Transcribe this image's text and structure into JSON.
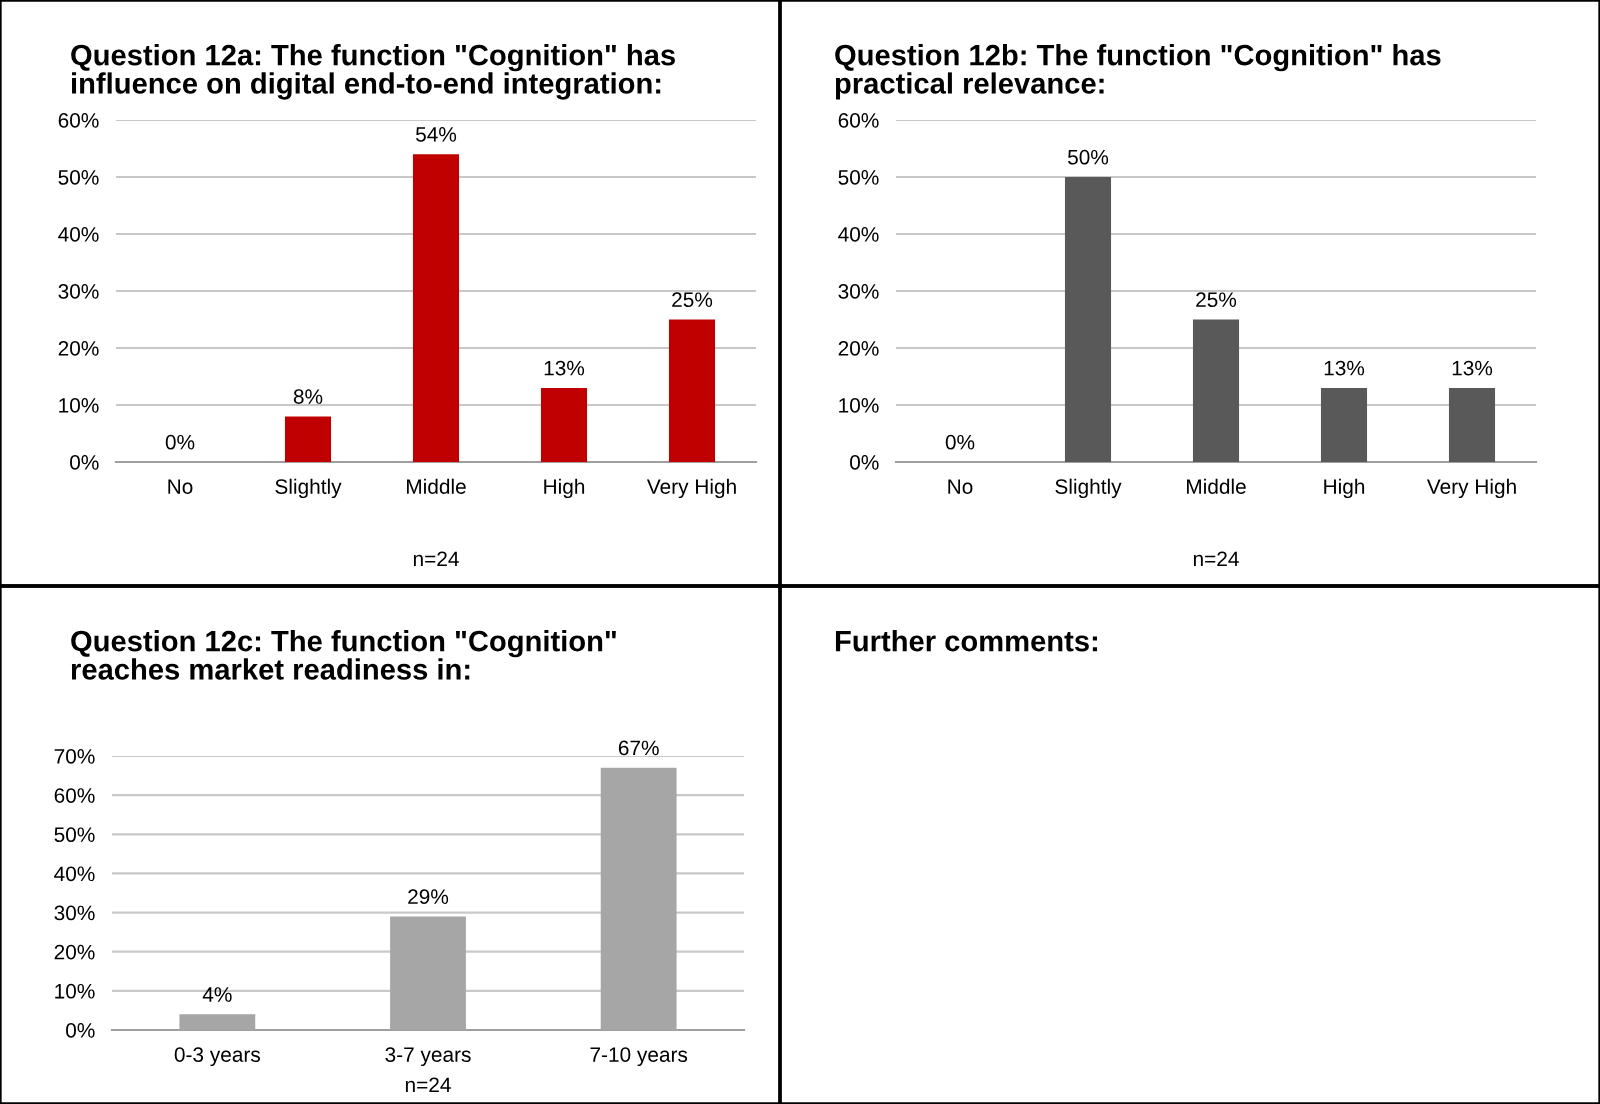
{
  "chart_data": [
    {
      "type": "bar",
      "title": "Question 12a: The function \"Cognition\" has influence on digital end-to-end integration:",
      "categories": [
        "No",
        "Slightly",
        "Middle",
        "High",
        "Very High"
      ],
      "values": [
        0,
        8,
        54,
        13,
        25
      ],
      "value_labels": [
        "0%",
        "8%",
        "54%",
        "13%",
        "25%"
      ],
      "color": "#c00000",
      "ylim": [
        0,
        60
      ],
      "yticks": [
        {
          "value": 0,
          "label": "0%"
        },
        {
          "value": 10,
          "label": "10%"
        },
        {
          "value": 20,
          "label": "20%"
        },
        {
          "value": 30,
          "label": "30%"
        },
        {
          "value": 40,
          "label": "40%"
        },
        {
          "value": 50,
          "label": "50%"
        },
        {
          "value": 60,
          "label": "60%"
        }
      ],
      "grid": "y",
      "annotations": [
        "n=24"
      ]
    },
    {
      "type": "bar",
      "title": "Question 12b: The function \"Cognition\" has practical relevance:",
      "categories": [
        "No",
        "Slightly",
        "Middle",
        "High",
        "Very High"
      ],
      "values": [
        0,
        50,
        25,
        13,
        13
      ],
      "value_labels": [
        "0%",
        "50%",
        "25%",
        "13%",
        "13%"
      ],
      "color": "#595959",
      "ylim": [
        0,
        60
      ],
      "yticks": [
        {
          "value": 0,
          "label": "0%"
        },
        {
          "value": 10,
          "label": "10%"
        },
        {
          "value": 20,
          "label": "20%"
        },
        {
          "value": 30,
          "label": "30%"
        },
        {
          "value": 40,
          "label": "40%"
        },
        {
          "value": 50,
          "label": "50%"
        },
        {
          "value": 60,
          "label": "60%"
        }
      ],
      "grid": "y",
      "annotations": [
        "n=24"
      ]
    },
    {
      "type": "bar",
      "title": "Question 12c: The function \"Cognition\" reaches market readiness in:",
      "categories": [
        "0-3 years",
        "3-7 years",
        "7-10 years"
      ],
      "values": [
        4,
        29,
        67
      ],
      "value_labels": [
        "4%",
        "29%",
        "67%"
      ],
      "color": "#a6a6a6",
      "ylim": [
        0,
        70
      ],
      "yticks": [
        {
          "value": 0,
          "label": "0%"
        },
        {
          "value": 10,
          "label": "10%"
        },
        {
          "value": 20,
          "label": "20%"
        },
        {
          "value": 30,
          "label": "30%"
        },
        {
          "value": 40,
          "label": "40%"
        },
        {
          "value": 50,
          "label": "50%"
        },
        {
          "value": 60,
          "label": "60%"
        },
        {
          "value": 70,
          "label": "70%"
        }
      ],
      "grid": "y",
      "annotations": [
        "n=24"
      ]
    },
    {
      "type": "other",
      "title": "Further comments:"
    }
  ]
}
